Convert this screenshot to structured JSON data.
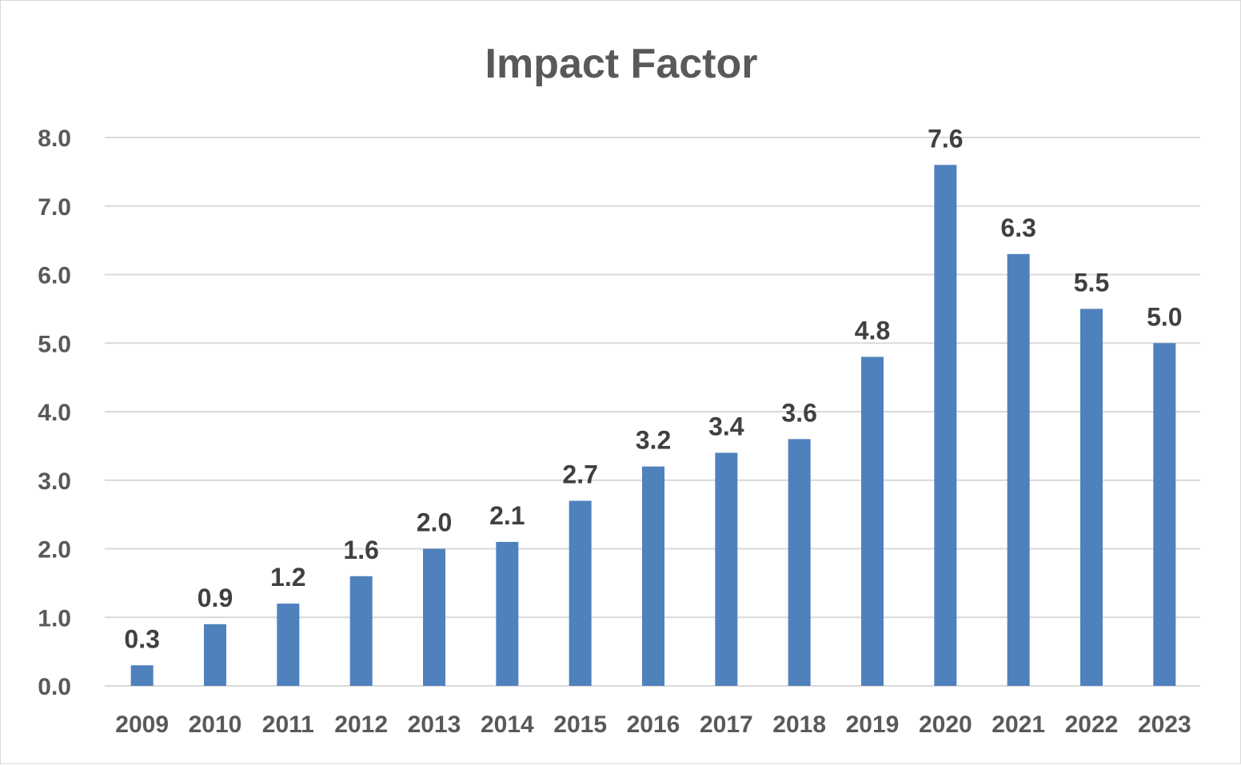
{
  "chart_data": {
    "type": "bar",
    "title": "Impact Factor",
    "xlabel": "",
    "ylabel": "",
    "categories": [
      "2009",
      "2010",
      "2011",
      "2012",
      "2013",
      "2014",
      "2015",
      "2016",
      "2017",
      "2018",
      "2019",
      "2020",
      "2021",
      "2022",
      "2023"
    ],
    "series": [
      {
        "values": [
          0.3,
          0.9,
          1.2,
          1.6,
          2.0,
          2.1,
          2.7,
          3.2,
          3.4,
          3.6,
          4.8,
          7.6,
          6.3,
          5.5,
          5.0
        ],
        "data_labels": [
          "0.3",
          "0.9",
          "1.2",
          "1.6",
          "2.0",
          "2.1",
          "2.7",
          "3.2",
          "3.4",
          "3.6",
          "4.8",
          "7.6",
          "6.3",
          "5.5",
          "5.0"
        ],
        "color": "#4f81bd"
      }
    ],
    "ylim": [
      0,
      8
    ],
    "yticks": [
      0,
      1,
      2,
      3,
      4,
      5,
      6,
      7,
      8
    ],
    "ytick_labels": [
      "0.0",
      "1.0",
      "2.0",
      "3.0",
      "4.0",
      "5.0",
      "6.0",
      "7.0",
      "8.0"
    ],
    "grid": true,
    "legend": "none"
  },
  "colors": {
    "bar": "#4f81bd",
    "gridline": "#d9d9d9",
    "axis_text": "#595959",
    "label_text": "#404040",
    "border": "#d9d9d9"
  }
}
